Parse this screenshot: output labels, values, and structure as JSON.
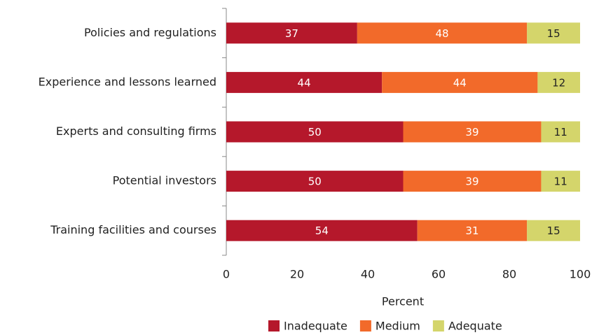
{
  "chart_data": {
    "type": "stacked-bar-horizontal",
    "categories": [
      "Policies and regulations",
      "Experience and lessons learned",
      "Experts and consulting firms",
      "Potential investors",
      "Training facilities and courses"
    ],
    "series": [
      {
        "name": "Inadequate",
        "color": "#b5182b",
        "values": [
          37,
          44,
          50,
          50,
          54
        ]
      },
      {
        "name": "Medium",
        "color": "#f26a2a",
        "values": [
          48,
          44,
          39,
          39,
          31
        ]
      },
      {
        "name": "Adequate",
        "color": "#d4d56b",
        "values": [
          15,
          12,
          11,
          11,
          15
        ]
      }
    ],
    "x_label": "Percent",
    "xlim": [
      0,
      100
    ],
    "xticks": [
      0,
      20,
      40,
      60,
      80,
      100
    ],
    "legend": "bottom"
  }
}
